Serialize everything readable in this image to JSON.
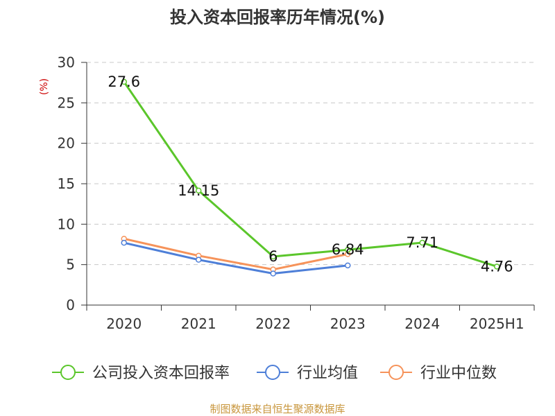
{
  "chart_data": {
    "type": "line",
    "title": "投入资本回报率历年情况(%)",
    "ylabel": "(%)",
    "xlabel": "",
    "categories": [
      "2020",
      "2021",
      "2022",
      "2023",
      "2024",
      "2025H1"
    ],
    "ylim": [
      0,
      30
    ],
    "yticks": [
      0,
      5,
      10,
      15,
      20,
      25,
      30
    ],
    "grid": true,
    "legend_position": "bottom",
    "series": [
      {
        "name": "公司投入资本回报率",
        "color": "#5bc62b",
        "labels": [
          "27.6",
          "14.15",
          "6",
          "6.84",
          "7.71",
          "4.76"
        ],
        "values": [
          27.6,
          14.15,
          6,
          6.84,
          7.71,
          4.76
        ]
      },
      {
        "name": "行业均值",
        "color": "#4e7fd8",
        "labels": [],
        "values": [
          7.7,
          5.6,
          3.9,
          4.9,
          null,
          null
        ]
      },
      {
        "name": "行业中位数",
        "color": "#f6935a",
        "labels": [],
        "values": [
          8.2,
          6.1,
          4.4,
          6.3,
          null,
          null
        ]
      }
    ],
    "source": "制图数据来自恒生聚源数据库"
  }
}
